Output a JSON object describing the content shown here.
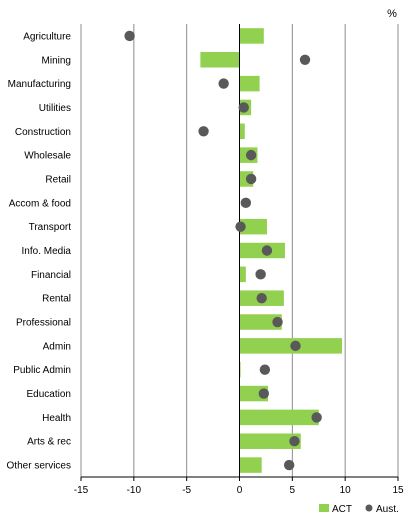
{
  "chart_data": {
    "type": "bar",
    "orientation": "horizontal",
    "unit_label": "%",
    "categories": [
      "Agriculture",
      "Mining",
      "Manufacturing",
      "Utilities",
      "Construction",
      "Wholesale",
      "Retail",
      "Accom & food",
      "Transport",
      "Info. Media",
      "Financial",
      "Rental",
      "Professional",
      "Admin",
      "Public Admin",
      "Education",
      "Health",
      "Arts & rec",
      "Other services"
    ],
    "series": [
      {
        "name": "ACT",
        "mark": "bar",
        "color": "#92D050",
        "values": [
          2.3,
          -3.7,
          1.9,
          1.1,
          0.5,
          1.7,
          1.3,
          0.0,
          2.6,
          4.3,
          0.6,
          4.2,
          4.0,
          9.7,
          0.1,
          2.7,
          7.5,
          5.8,
          2.1
        ]
      },
      {
        "name": "Aust.",
        "mark": "dot",
        "color": "#595959",
        "values": [
          -10.4,
          6.2,
          -1.5,
          0.4,
          -3.4,
          1.1,
          1.1,
          0.6,
          0.1,
          2.6,
          2.0,
          2.1,
          3.6,
          5.3,
          2.4,
          2.3,
          7.3,
          5.2,
          4.7
        ]
      }
    ],
    "xlim": [
      -15,
      15
    ],
    "xticks": [
      -15,
      -10,
      -5,
      0,
      5,
      10,
      15
    ],
    "grid": "vertical",
    "legend": "bottom-right"
  }
}
